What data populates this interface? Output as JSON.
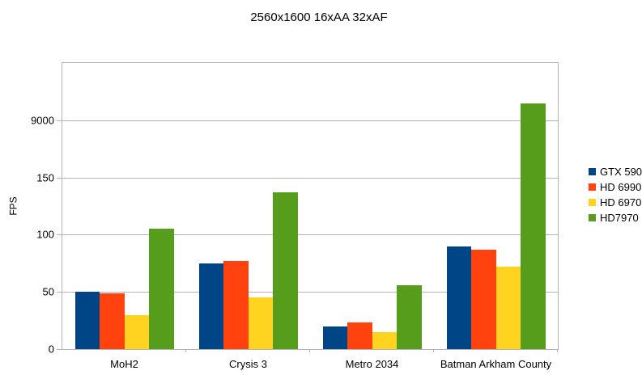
{
  "chart_data": {
    "type": "bar",
    "title": "2560x1600 16xAA 32xAF",
    "ylabel": "FPS",
    "xlabel": "",
    "categories": [
      "MoH2",
      "Crysis 3",
      "Metro 2034",
      "Batman Arkham County"
    ],
    "series": [
      {
        "name": "GTX 590",
        "color": "#004586",
        "values": [
          50,
          75,
          20,
          90
        ]
      },
      {
        "name": "HD 6990",
        "color": "#FF420E",
        "values": [
          49,
          77,
          23,
          87
        ]
      },
      {
        "name": "HD 6970",
        "color": "#FFD320",
        "values": [
          30,
          45,
          15,
          72
        ]
      },
      {
        "name": "HD7970",
        "color": "#579D1C",
        "values": [
          105,
          137,
          56,
          215
        ]
      }
    ],
    "yticks": [
      {
        "value": 0,
        "label": "0"
      },
      {
        "value": 50,
        "label": "50"
      },
      {
        "value": 100,
        "label": "100"
      },
      {
        "value": 150,
        "label": "150"
      },
      {
        "value": 200,
        "label": "9000"
      }
    ],
    "ylim": [
      0,
      250
    ],
    "grid": true,
    "legend_position": "right",
    "note": "Y axis tick where 200 would fall is labeled '9000'; the HD7970 bar for Batman Arkham County extends above that gridline (plotted at ~215 on the linear pixel scale)."
  },
  "colors": {
    "background": "#FFFFFF",
    "grid": "#B3B3B3",
    "axis": "#B3B3B3",
    "text": "#000000"
  }
}
